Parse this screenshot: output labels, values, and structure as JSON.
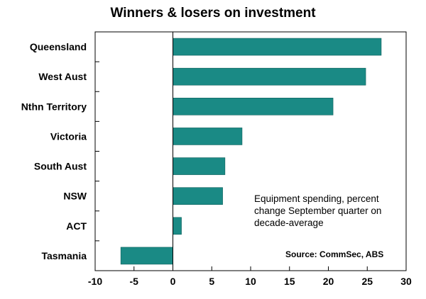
{
  "chart_data": {
    "type": "bar",
    "orientation": "horizontal",
    "title": "Winners & losers on investment",
    "categories": [
      "Queensland",
      "West Aust",
      "Nthn Territory",
      "Victoria",
      "South Aust",
      "NSW",
      "ACT",
      "Tasmania"
    ],
    "values": [
      26.8,
      24.8,
      20.6,
      8.9,
      6.7,
      6.4,
      1.1,
      -6.7
    ],
    "xlim": [
      -10,
      30
    ],
    "xticks": [
      -10,
      -5,
      0,
      5,
      10,
      15,
      20,
      25,
      30
    ],
    "grid": false,
    "bar_color": "#1a8a85",
    "annotation": "Equipment spending, percent change September quarter on decade-average",
    "source": "Source: CommSec, ABS"
  }
}
